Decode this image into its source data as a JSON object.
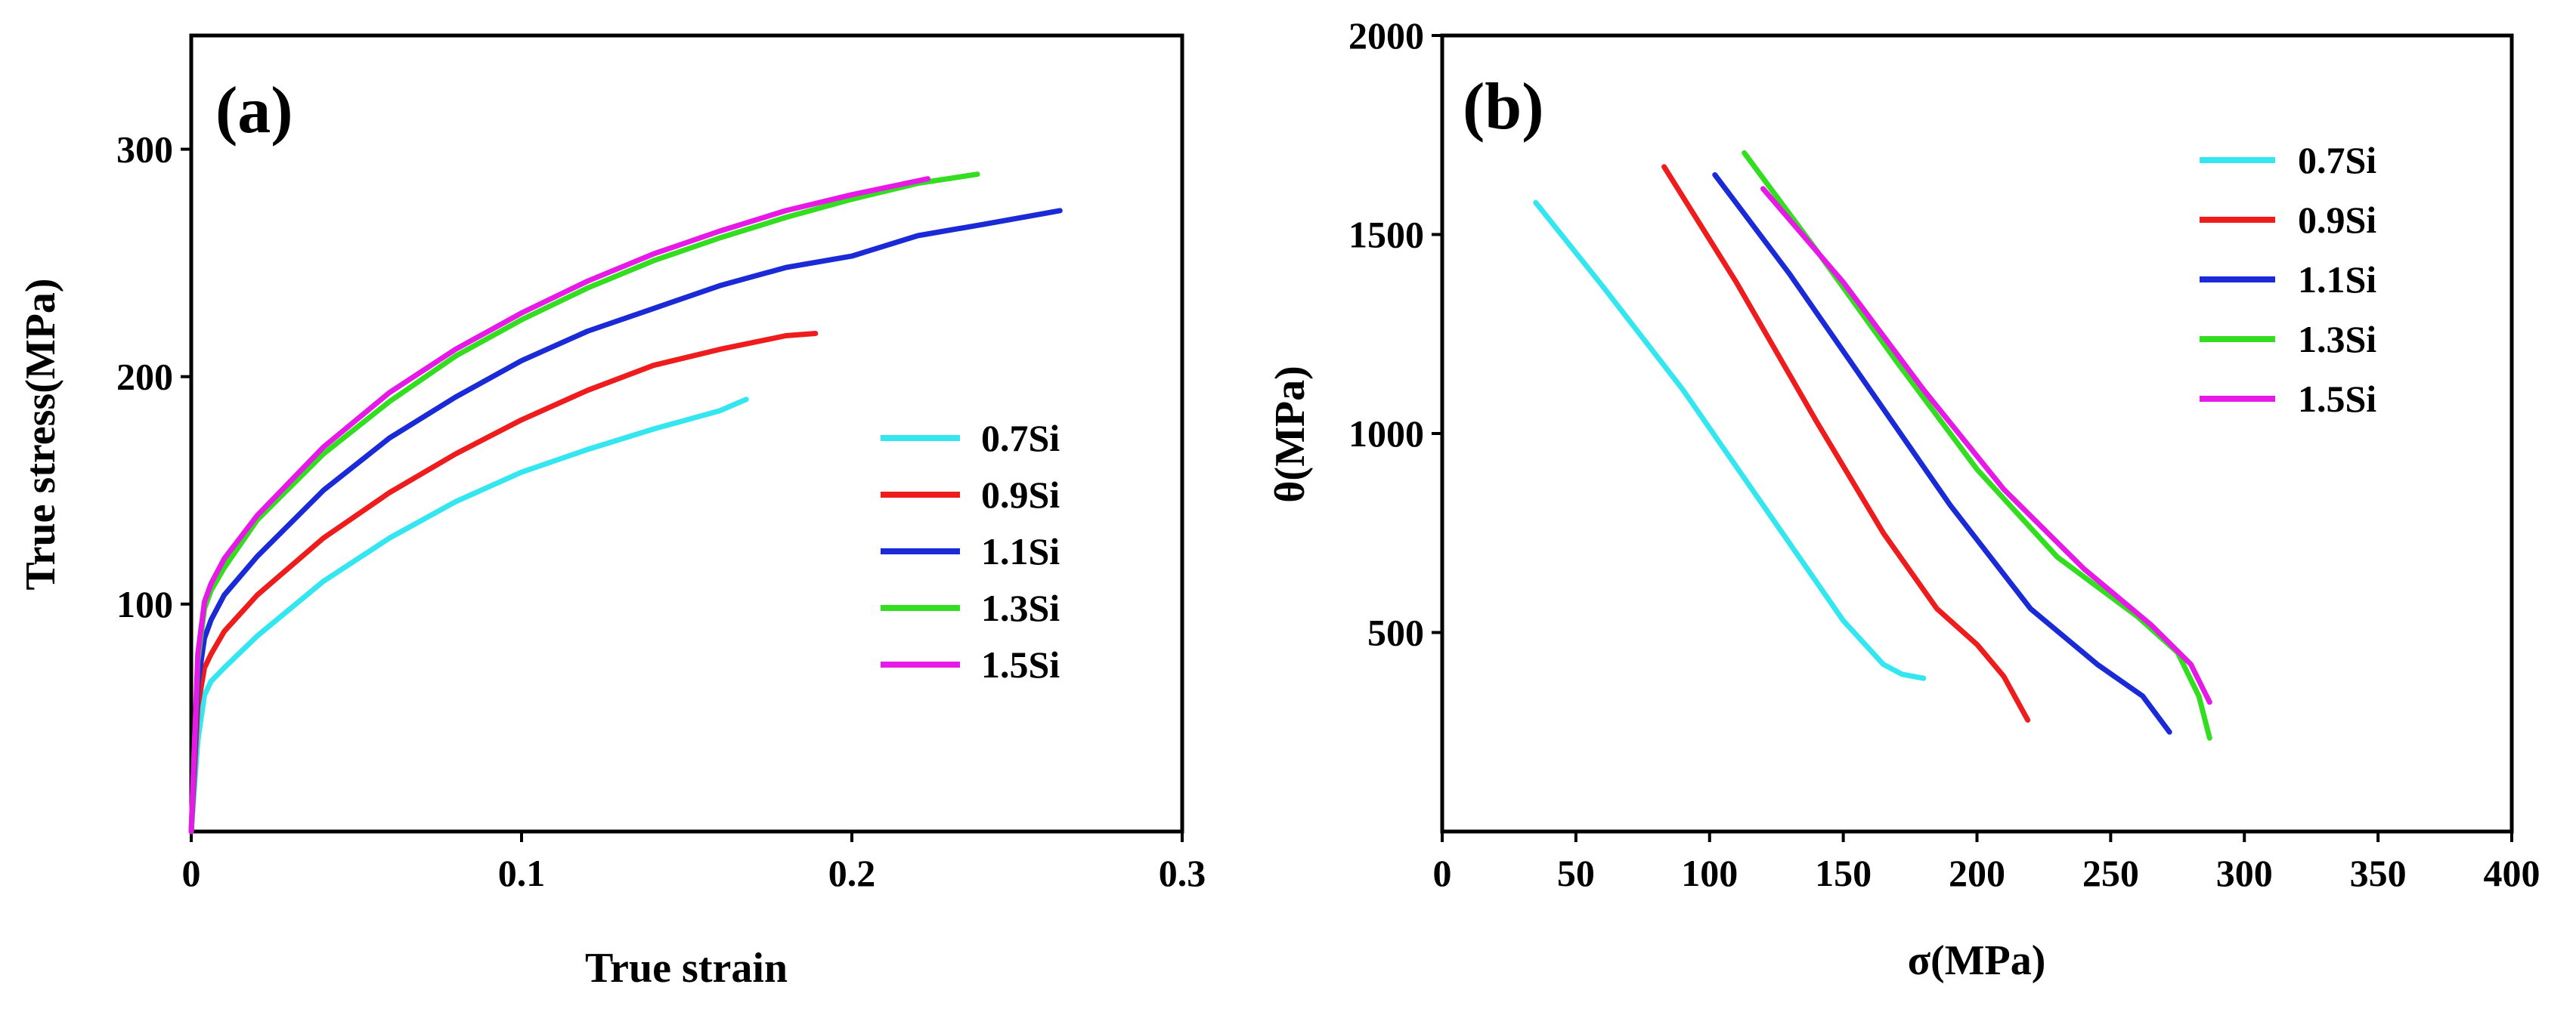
{
  "chart_data": [
    {
      "type": "line",
      "panel_label": "(a)",
      "xlabel": "True strain",
      "ylabel": "True stress(MPa)",
      "xlim": [
        0,
        0.3
      ],
      "ylim": [
        0,
        350
      ],
      "xticks": [
        0,
        0.1,
        0.2,
        0.3
      ],
      "xtick_labels": [
        "0",
        "0.1",
        "0.2",
        "0.3"
      ],
      "yticks": [
        100,
        200,
        300
      ],
      "ytick_labels": [
        "100",
        "200",
        "300"
      ],
      "grid": false,
      "legend_position": "right",
      "series": [
        {
          "name": "0.7Si",
          "color": "#33e6f0",
          "x": [
            0,
            0.002,
            0.004,
            0.006,
            0.01,
            0.02,
            0.04,
            0.06,
            0.08,
            0.1,
            0.12,
            0.14,
            0.16,
            0.168
          ],
          "y": [
            0,
            40,
            60,
            66,
            72,
            86,
            110,
            129,
            145,
            158,
            168,
            177,
            185,
            190
          ]
        },
        {
          "name": "0.9Si",
          "color": "#ee1c1c",
          "x": [
            0,
            0.002,
            0.004,
            0.006,
            0.01,
            0.02,
            0.04,
            0.06,
            0.08,
            0.1,
            0.12,
            0.14,
            0.16,
            0.18,
            0.189
          ],
          "y": [
            0,
            55,
            72,
            78,
            88,
            104,
            129,
            149,
            166,
            181,
            194,
            205,
            212,
            218,
            219
          ]
        },
        {
          "name": "1.1Si",
          "color": "#1a2ad6",
          "x": [
            0,
            0.002,
            0.004,
            0.006,
            0.01,
            0.02,
            0.04,
            0.06,
            0.08,
            0.1,
            0.12,
            0.14,
            0.16,
            0.18,
            0.2,
            0.22,
            0.24,
            0.263
          ],
          "y": [
            0,
            65,
            85,
            93,
            104,
            121,
            150,
            173,
            191,
            207,
            220,
            230,
            240,
            248,
            253,
            262,
            267,
            273
          ]
        },
        {
          "name": "1.3Si",
          "color": "#33dd1f",
          "x": [
            0,
            0.002,
            0.004,
            0.006,
            0.01,
            0.02,
            0.04,
            0.06,
            0.08,
            0.1,
            0.12,
            0.14,
            0.16,
            0.18,
            0.2,
            0.22,
            0.238
          ],
          "y": [
            0,
            75,
            98,
            106,
            116,
            137,
            166,
            189,
            209,
            225,
            239,
            251,
            261,
            270,
            278,
            285,
            289
          ]
        },
        {
          "name": "1.5Si",
          "color": "#e619e6",
          "x": [
            0,
            0.002,
            0.004,
            0.006,
            0.01,
            0.02,
            0.04,
            0.06,
            0.08,
            0.1,
            0.12,
            0.14,
            0.16,
            0.18,
            0.2,
            0.223
          ],
          "y": [
            0,
            78,
            101,
            109,
            120,
            139,
            169,
            193,
            212,
            228,
            242,
            254,
            264,
            273,
            280,
            287
          ]
        }
      ]
    },
    {
      "type": "line",
      "panel_label": "(b)",
      "xlabel": "σ(MPa)",
      "ylabel": "θ(MPa)",
      "xlim": [
        0,
        400
      ],
      "ylim": [
        0,
        2000
      ],
      "xticks": [
        0,
        50,
        100,
        150,
        200,
        250,
        300,
        350,
        400
      ],
      "xtick_labels": [
        "0",
        "50",
        "100",
        "150",
        "200",
        "250",
        "300",
        "350",
        "400"
      ],
      "yticks": [
        500,
        1000,
        1500,
        2000
      ],
      "ytick_labels": [
        "500",
        "1000",
        "1500",
        "2000"
      ],
      "grid": false,
      "legend_position": "top-right",
      "series": [
        {
          "name": "0.7Si",
          "color": "#33e6f0",
          "x": [
            35,
            60,
            90,
            120,
            150,
            165,
            172,
            180
          ],
          "y": [
            1580,
            1370,
            1110,
            820,
            530,
            420,
            395,
            385
          ]
        },
        {
          "name": "0.9Si",
          "color": "#ee1c1c",
          "x": [
            83,
            110,
            140,
            165,
            185,
            200,
            210,
            219
          ],
          "y": [
            1670,
            1380,
            1030,
            750,
            560,
            470,
            390,
            280
          ]
        },
        {
          "name": "1.1Si",
          "color": "#1a2ad6",
          "x": [
            102,
            130,
            160,
            190,
            220,
            245,
            262,
            272
          ],
          "y": [
            1650,
            1400,
            1110,
            820,
            560,
            420,
            340,
            250
          ]
        },
        {
          "name": "1.3Si",
          "color": "#33dd1f",
          "x": [
            113,
            140,
            170,
            200,
            230,
            260,
            275,
            283,
            287
          ],
          "y": [
            1705,
            1460,
            1180,
            910,
            690,
            540,
            450,
            340,
            235
          ]
        },
        {
          "name": "1.5Si",
          "color": "#e619e6",
          "x": [
            120,
            150,
            180,
            210,
            240,
            265,
            280,
            287
          ],
          "y": [
            1615,
            1380,
            1110,
            860,
            660,
            520,
            420,
            325
          ]
        }
      ]
    }
  ]
}
